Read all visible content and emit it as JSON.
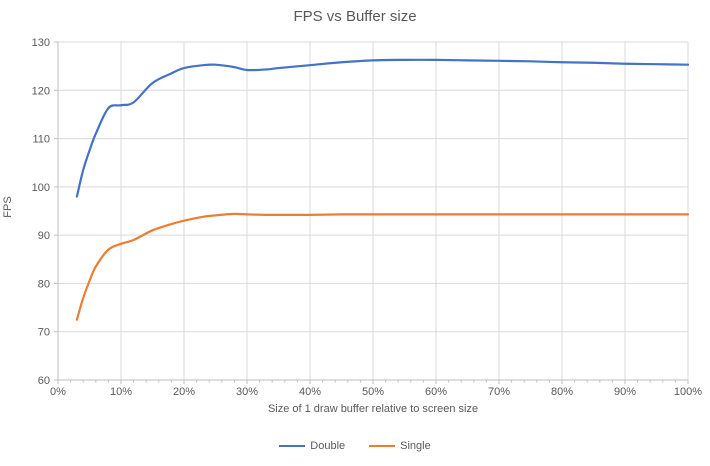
{
  "title": "FPS vs Buffer size",
  "colors": {
    "series_double": "#4472C4",
    "series_single": "#ED7D31",
    "gridline": "#D9D9D9",
    "axis_line": "#BFBFBF",
    "text": "#595959"
  },
  "chart_data": {
    "type": "line",
    "title": "FPS vs Buffer size",
    "xlabel": "Size of 1 draw buffer relative to screen size",
    "ylabel": "FPS",
    "xlim": [
      0,
      100
    ],
    "ylim": [
      60,
      130
    ],
    "x_major_ticks": [
      0,
      10,
      20,
      30,
      40,
      50,
      60,
      70,
      80,
      90,
      100
    ],
    "x_tick_labels": [
      "0%",
      "10%",
      "20%",
      "30%",
      "40%",
      "50%",
      "60%",
      "70%",
      "80%",
      "90%",
      "100%"
    ],
    "x_minor_tick_step": 2,
    "y_ticks": [
      60,
      70,
      80,
      90,
      100,
      110,
      120,
      130
    ],
    "grid": true,
    "smooth": true,
    "legend_position": "bottom",
    "x": [
      3,
      4,
      5,
      6,
      8,
      10,
      12,
      15,
      18,
      20,
      23,
      25,
      28,
      30,
      33,
      35,
      40,
      45,
      50,
      55,
      60,
      65,
      70,
      75,
      80,
      85,
      90,
      95,
      100
    ],
    "series": [
      {
        "name": "Double",
        "color": "#4472C4",
        "values": [
          98,
          103.5,
          107.5,
          111,
          116.3,
          116.9,
          117.5,
          121.5,
          123.5,
          124.6,
          125.2,
          125.3,
          124.8,
          124.2,
          124.3,
          124.6,
          125.2,
          125.8,
          126.2,
          126.3,
          126.3,
          126.2,
          126.1,
          126,
          125.8,
          125.7,
          125.5,
          125.4,
          125.3
        ]
      },
      {
        "name": "Single",
        "color": "#ED7D31",
        "values": [
          72.5,
          77,
          80.5,
          83.5,
          87,
          88.2,
          89,
          91,
          92.3,
          93,
          93.8,
          94.1,
          94.4,
          94.3,
          94.2,
          94.2,
          94.2,
          94.3,
          94.3,
          94.3,
          94.3,
          94.3,
          94.3,
          94.3,
          94.3,
          94.3,
          94.3,
          94.3,
          94.3
        ]
      }
    ]
  }
}
